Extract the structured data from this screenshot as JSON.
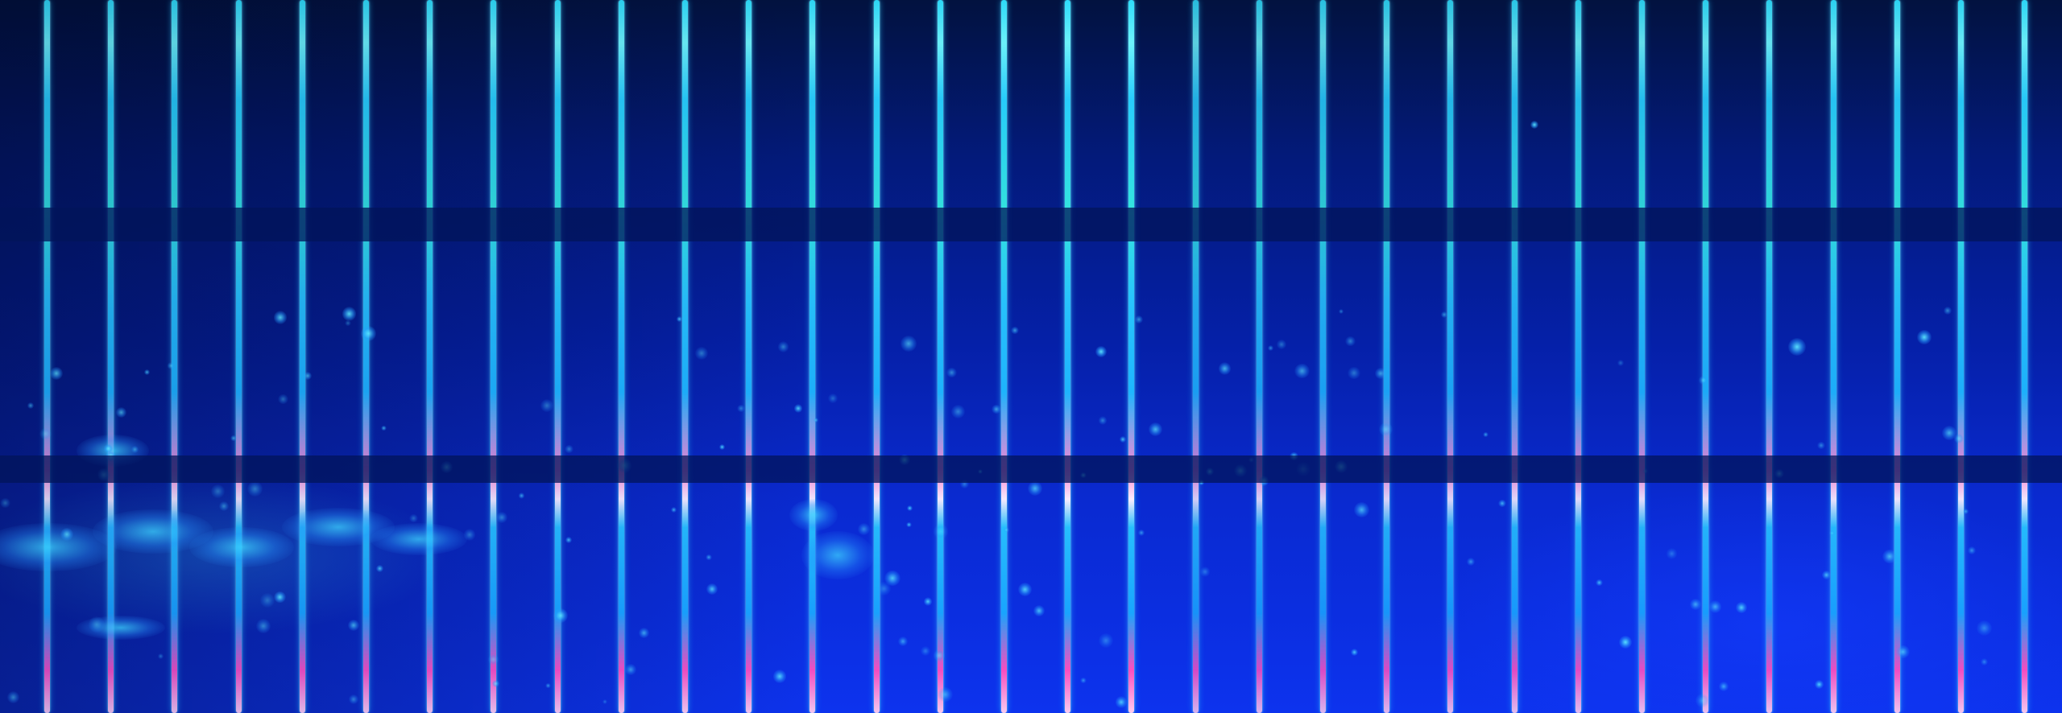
{
  "image": {
    "description_tags": [
      "fluorescence-microscopy",
      "striped-pattern"
    ],
    "palette": {
      "background_top": "#02123f",
      "background_mid": "#0520a8",
      "background_bottom": "#0d33ee",
      "line_cyan": "#2fe0ff",
      "line_highlight": "#6ff7ff",
      "line_magenta": "#ff8bd6",
      "speckle_cyan": "#5ae6ff"
    },
    "line_count": 32
  }
}
